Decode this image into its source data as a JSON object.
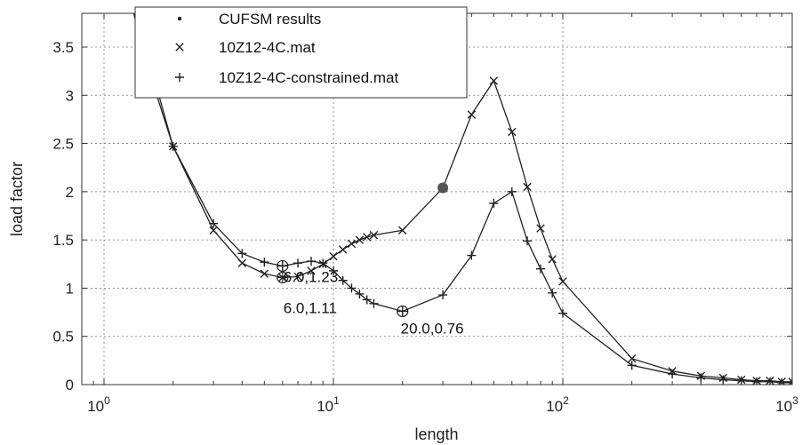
{
  "chart_data": {
    "type": "line",
    "xlabel": "length",
    "ylabel": "load factor",
    "xscale": "log",
    "xlim": [
      0.8,
      1000
    ],
    "ylim": [
      0,
      3.85
    ],
    "grid": true,
    "legend_position": "top-left",
    "xticks": [
      {
        "value": 1,
        "base": "10",
        "exp": "0"
      },
      {
        "value": 10,
        "base": "10",
        "exp": "1"
      },
      {
        "value": 100,
        "base": "10",
        "exp": "2"
      },
      {
        "value": 1000,
        "base": "10",
        "exp": "3"
      }
    ],
    "yticks": [
      {
        "value": 0,
        "label": "0"
      },
      {
        "value": 0.5,
        "label": "0.5"
      },
      {
        "value": 1,
        "label": "1"
      },
      {
        "value": 1.5,
        "label": "1.5"
      },
      {
        "value": 2,
        "label": "2"
      },
      {
        "value": 2.5,
        "label": "2.5"
      },
      {
        "value": 3,
        "label": "3"
      },
      {
        "value": 3.5,
        "label": "3.5"
      }
    ],
    "series": [
      {
        "name": "CUFSM results",
        "marker": "dot",
        "x": [],
        "y": []
      },
      {
        "name": "10Z12-4C.mat",
        "marker": "x",
        "x": [
          1.3,
          1.5,
          2,
          3,
          4,
          5,
          6,
          7,
          8,
          9,
          10,
          11,
          12,
          13,
          14,
          15,
          20,
          30,
          40,
          50,
          60,
          70,
          80,
          90,
          100,
          200,
          300,
          400,
          500,
          600,
          700,
          800,
          900,
          1000
        ],
        "y": [
          4.0,
          3.4,
          2.47,
          1.6,
          1.26,
          1.15,
          1.11,
          1.12,
          1.18,
          1.25,
          1.33,
          1.4,
          1.46,
          1.5,
          1.53,
          1.55,
          1.6,
          2.04,
          2.8,
          3.15,
          2.62,
          2.05,
          1.62,
          1.3,
          1.07,
          0.27,
          0.14,
          0.09,
          0.07,
          0.05,
          0.04,
          0.04,
          0.03,
          0.03
        ]
      },
      {
        "name": "10Z12-4C-constrained.mat",
        "marker": "plus",
        "x": [
          1.4,
          1.6,
          2,
          3,
          4,
          5,
          6,
          7,
          8,
          9,
          10,
          11,
          12,
          13,
          14,
          15,
          20,
          30,
          40,
          50,
          60,
          70,
          80,
          90,
          100,
          200,
          300,
          400,
          500,
          600,
          700,
          800,
          900,
          1000
        ],
        "y": [
          4.0,
          3.3,
          2.47,
          1.67,
          1.36,
          1.27,
          1.23,
          1.26,
          1.28,
          1.26,
          1.18,
          1.08,
          1.0,
          0.94,
          0.88,
          0.84,
          0.76,
          0.93,
          1.34,
          1.88,
          2.0,
          1.49,
          1.2,
          0.95,
          0.74,
          0.2,
          0.11,
          0.07,
          0.05,
          0.04,
          0.03,
          0.03,
          0.02,
          0.02
        ]
      }
    ],
    "highlight_point": {
      "x": 30,
      "y": 2.04,
      "color": "#555555"
    },
    "annotations": [
      {
        "x": 6,
        "y": 1.23,
        "label": "6.0,1.23"
      },
      {
        "x": 6,
        "y": 1.11,
        "label": "6.0,1.11"
      },
      {
        "x": 20,
        "y": 0.76,
        "label": "20.0,0.76"
      }
    ],
    "line_color": "#222222"
  }
}
